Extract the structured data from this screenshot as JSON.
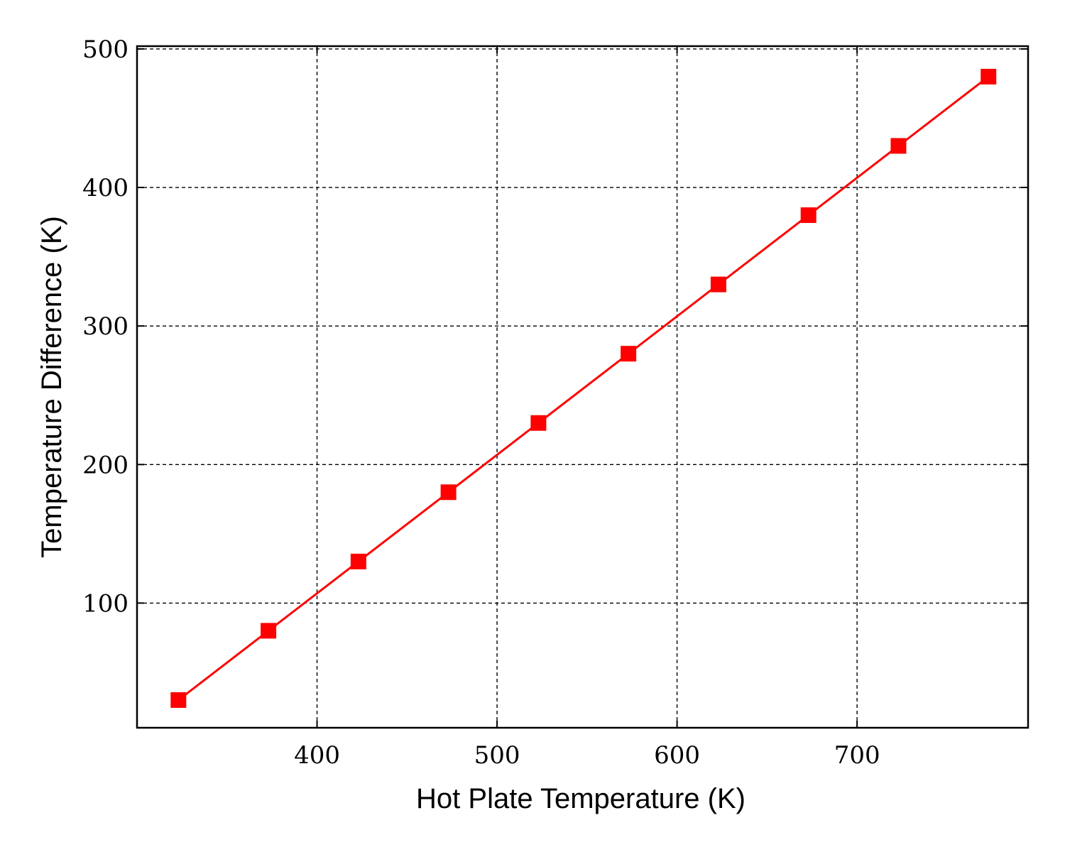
{
  "chart_data": {
    "type": "line",
    "title": "",
    "xlabel": "Hot Plate Temperature (K)",
    "ylabel": "Temperature Difference (K)",
    "xlim": [
      300,
      795
    ],
    "ylim": [
      10,
      502
    ],
    "xticks": [
      400,
      500,
      600,
      700
    ],
    "yticks": [
      100,
      200,
      300,
      400,
      500
    ],
    "grid": true,
    "series": [
      {
        "color": "#ff0000",
        "marker": "square",
        "x": [
          323,
          373,
          423,
          473,
          523,
          573,
          623,
          673,
          723,
          773
        ],
        "y": [
          30,
          80,
          130,
          180,
          230,
          280,
          330,
          380,
          430,
          480
        ]
      }
    ]
  }
}
